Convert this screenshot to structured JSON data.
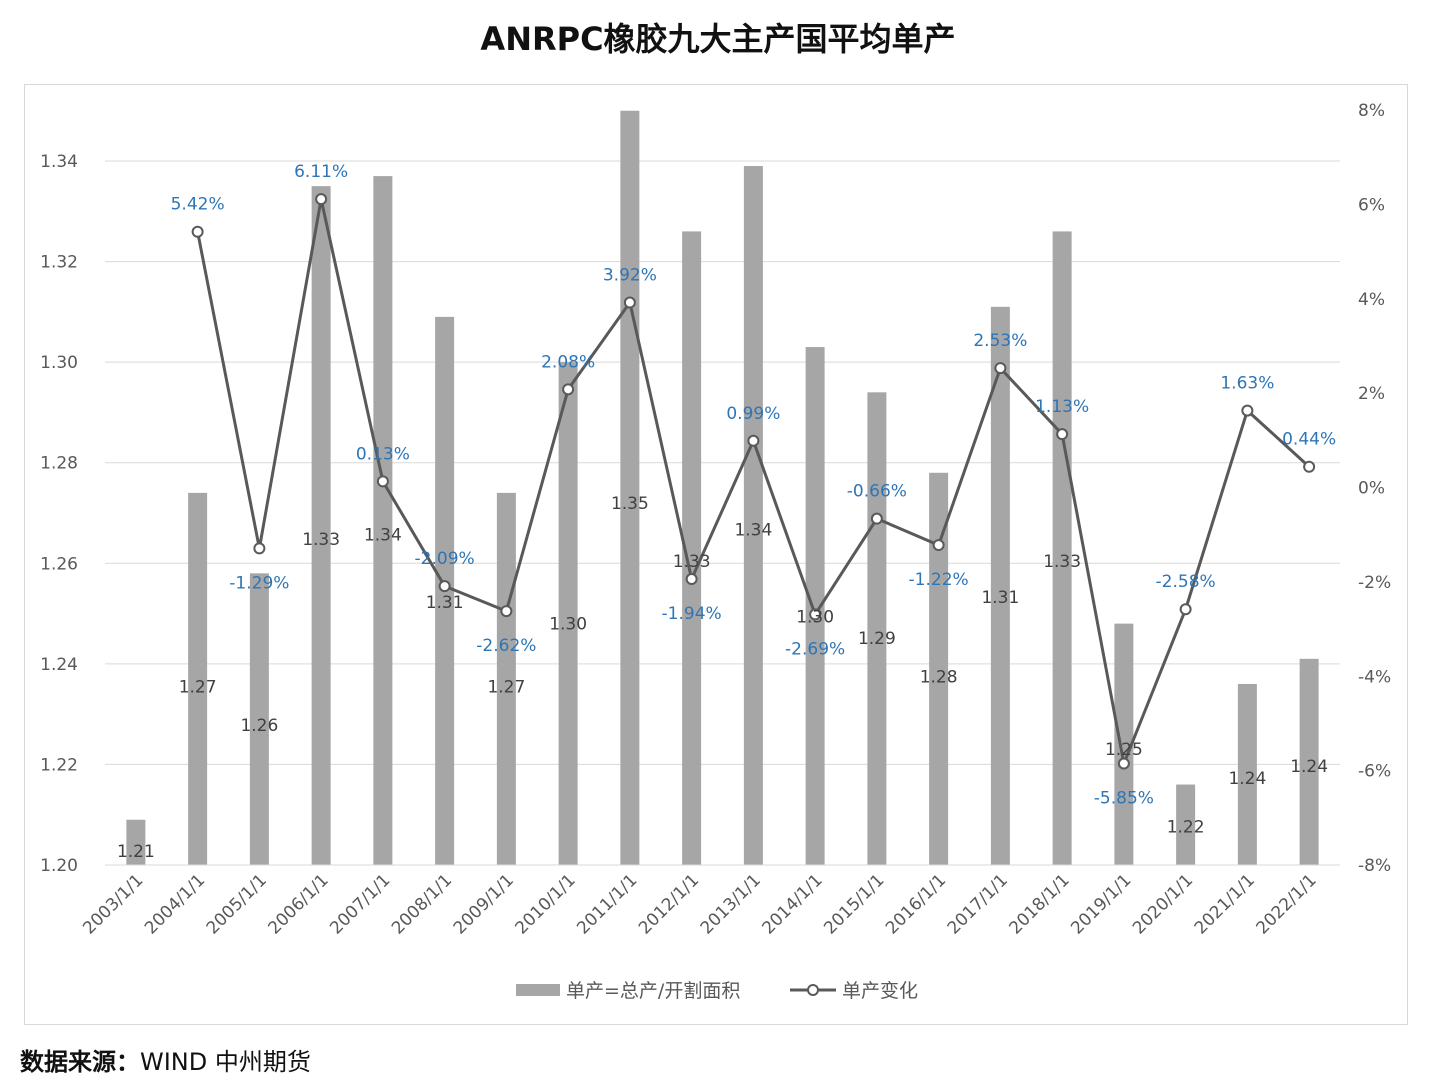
{
  "title": "ANRPC橡胶九大主产国平均单产",
  "source": {
    "label": "数据来源：",
    "text": "WIND  中州期货"
  },
  "colors": {
    "bar": "#a6a6a6",
    "line": "#595959",
    "grid": "#d9d9d9",
    "pct_label": "#2e75b6",
    "value_label": "#404040"
  },
  "chart_data": {
    "type": "bar",
    "categories": [
      "2003/1/1",
      "2004/1/1",
      "2005/1/1",
      "2006/1/1",
      "2007/1/1",
      "2008/1/1",
      "2009/1/1",
      "2010/1/1",
      "2011/1/1",
      "2012/1/1",
      "2013/1/1",
      "2014/1/1",
      "2015/1/1",
      "2016/1/1",
      "2017/1/1",
      "2018/1/1",
      "2019/1/1",
      "2020/1/1",
      "2021/1/1",
      "2022/1/1"
    ],
    "series": [
      {
        "name": "单产=总产/开割面积",
        "type": "bar",
        "axis": "left",
        "values": [
          1.209,
          1.274,
          1.258,
          1.335,
          1.337,
          1.309,
          1.274,
          1.3,
          1.35,
          1.326,
          1.339,
          1.303,
          1.294,
          1.278,
          1.311,
          1.326,
          1.248,
          1.216,
          1.236,
          1.241
        ],
        "labels": [
          "1.21",
          "1.27",
          "1.26",
          "1.33",
          "1.34",
          "1.31",
          "1.27",
          "1.30",
          "1.35",
          "1.33",
          "1.34",
          "1.30",
          "1.29",
          "1.28",
          "1.31",
          "1.33",
          "1.25",
          "1.22",
          "1.24",
          "1.24"
        ]
      },
      {
        "name": "单产变化",
        "type": "line",
        "axis": "right",
        "values": [
          null,
          5.42,
          -1.29,
          6.11,
          0.13,
          -2.09,
          -2.62,
          2.08,
          3.92,
          -1.94,
          0.99,
          -2.69,
          -0.66,
          -1.22,
          2.53,
          1.13,
          -5.85,
          -2.58,
          1.63,
          0.44
        ],
        "labels": [
          "",
          "5.42%",
          "-1.29%",
          "6.11%",
          "0.13%",
          "-2.09%",
          "-2.62%",
          "2.08%",
          "3.92%",
          "-1.94%",
          "0.99%",
          "-2.69%",
          "-0.66%",
          "-1.22%",
          "2.53%",
          "1.13%",
          "-5.85%",
          "-2.58%",
          "1.63%",
          "0.44%"
        ]
      }
    ],
    "y_left": {
      "range": [
        1.2,
        1.35
      ],
      "ticks": [
        "1.20",
        "1.22",
        "1.24",
        "1.26",
        "1.28",
        "1.30",
        "1.32",
        "1.34"
      ]
    },
    "y_right": {
      "range": [
        -8,
        8
      ],
      "ticks": [
        "-8%",
        "-6%",
        "-4%",
        "-2%",
        "0%",
        "2%",
        "4%",
        "6%",
        "8%"
      ]
    },
    "grid": true,
    "legend": "bottom"
  }
}
